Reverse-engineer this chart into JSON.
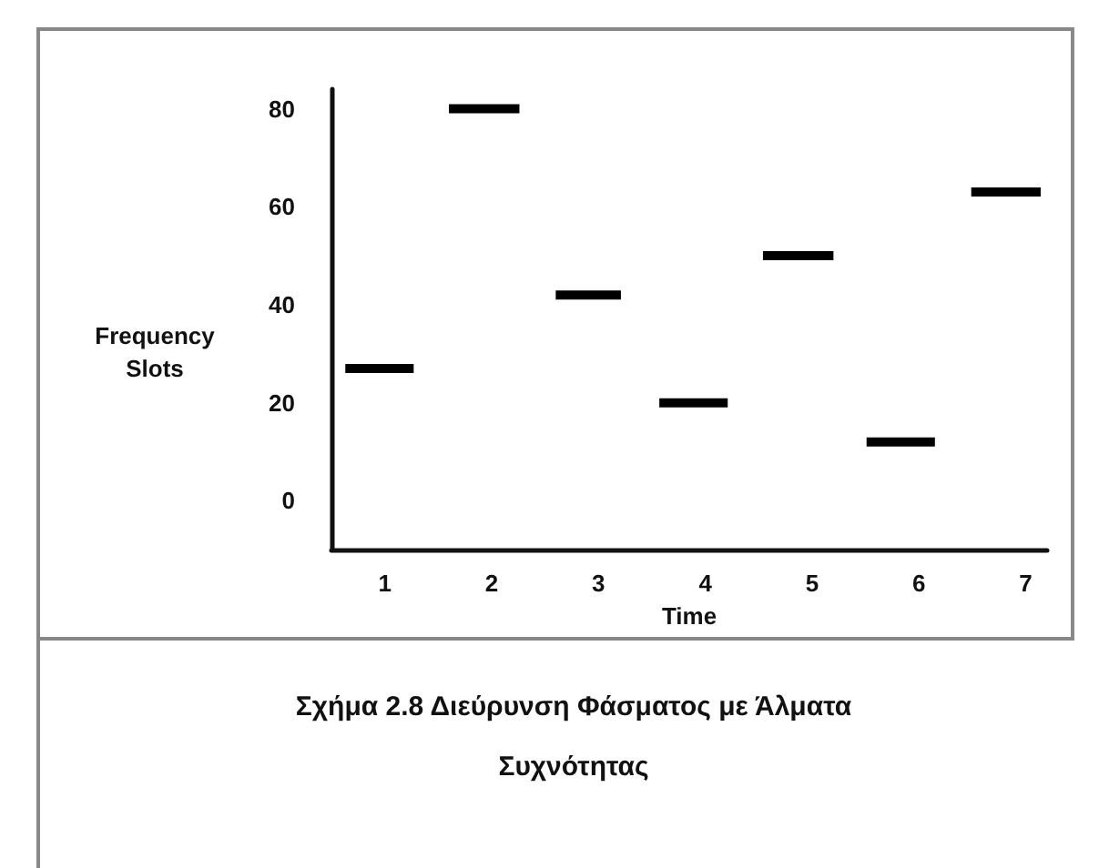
{
  "chart_data": {
    "type": "line",
    "title": "Σχήμα 2.8  Διεύρυνση Φάσματος με Άλματα Συχνότητας",
    "xlabel": "Time",
    "ylabel": "Frequency Slots",
    "series": [
      {
        "color": "#000000",
        "x": [
          0.63,
          1.27
        ],
        "values": [
          27,
          27
        ]
      },
      {
        "color": "#000000",
        "x": [
          1.6,
          2.26
        ],
        "values": [
          80,
          80
        ]
      },
      {
        "color": "#000000",
        "x": [
          2.6,
          3.21
        ],
        "values": [
          42,
          42
        ]
      },
      {
        "color": "#000000",
        "x": [
          3.57,
          4.21
        ],
        "values": [
          20,
          20
        ]
      },
      {
        "color": "#000000",
        "x": [
          4.54,
          5.2
        ],
        "values": [
          50,
          50
        ]
      },
      {
        "color": "#000000",
        "x": [
          5.51,
          6.15
        ],
        "values": [
          12,
          12
        ]
      },
      {
        "color": "#000000",
        "x": [
          6.49,
          7.14
        ],
        "values": [
          63,
          63
        ]
      }
    ],
    "xlim": [
      0.5,
      7.2
    ],
    "xticks": [
      1,
      2,
      3,
      4,
      5,
      6,
      7
    ],
    "ylim": [
      -10,
      84
    ],
    "yticks": [
      0,
      20,
      40,
      60,
      80
    ],
    "marker": "none",
    "line_style": "solid",
    "grid": false
  }
}
